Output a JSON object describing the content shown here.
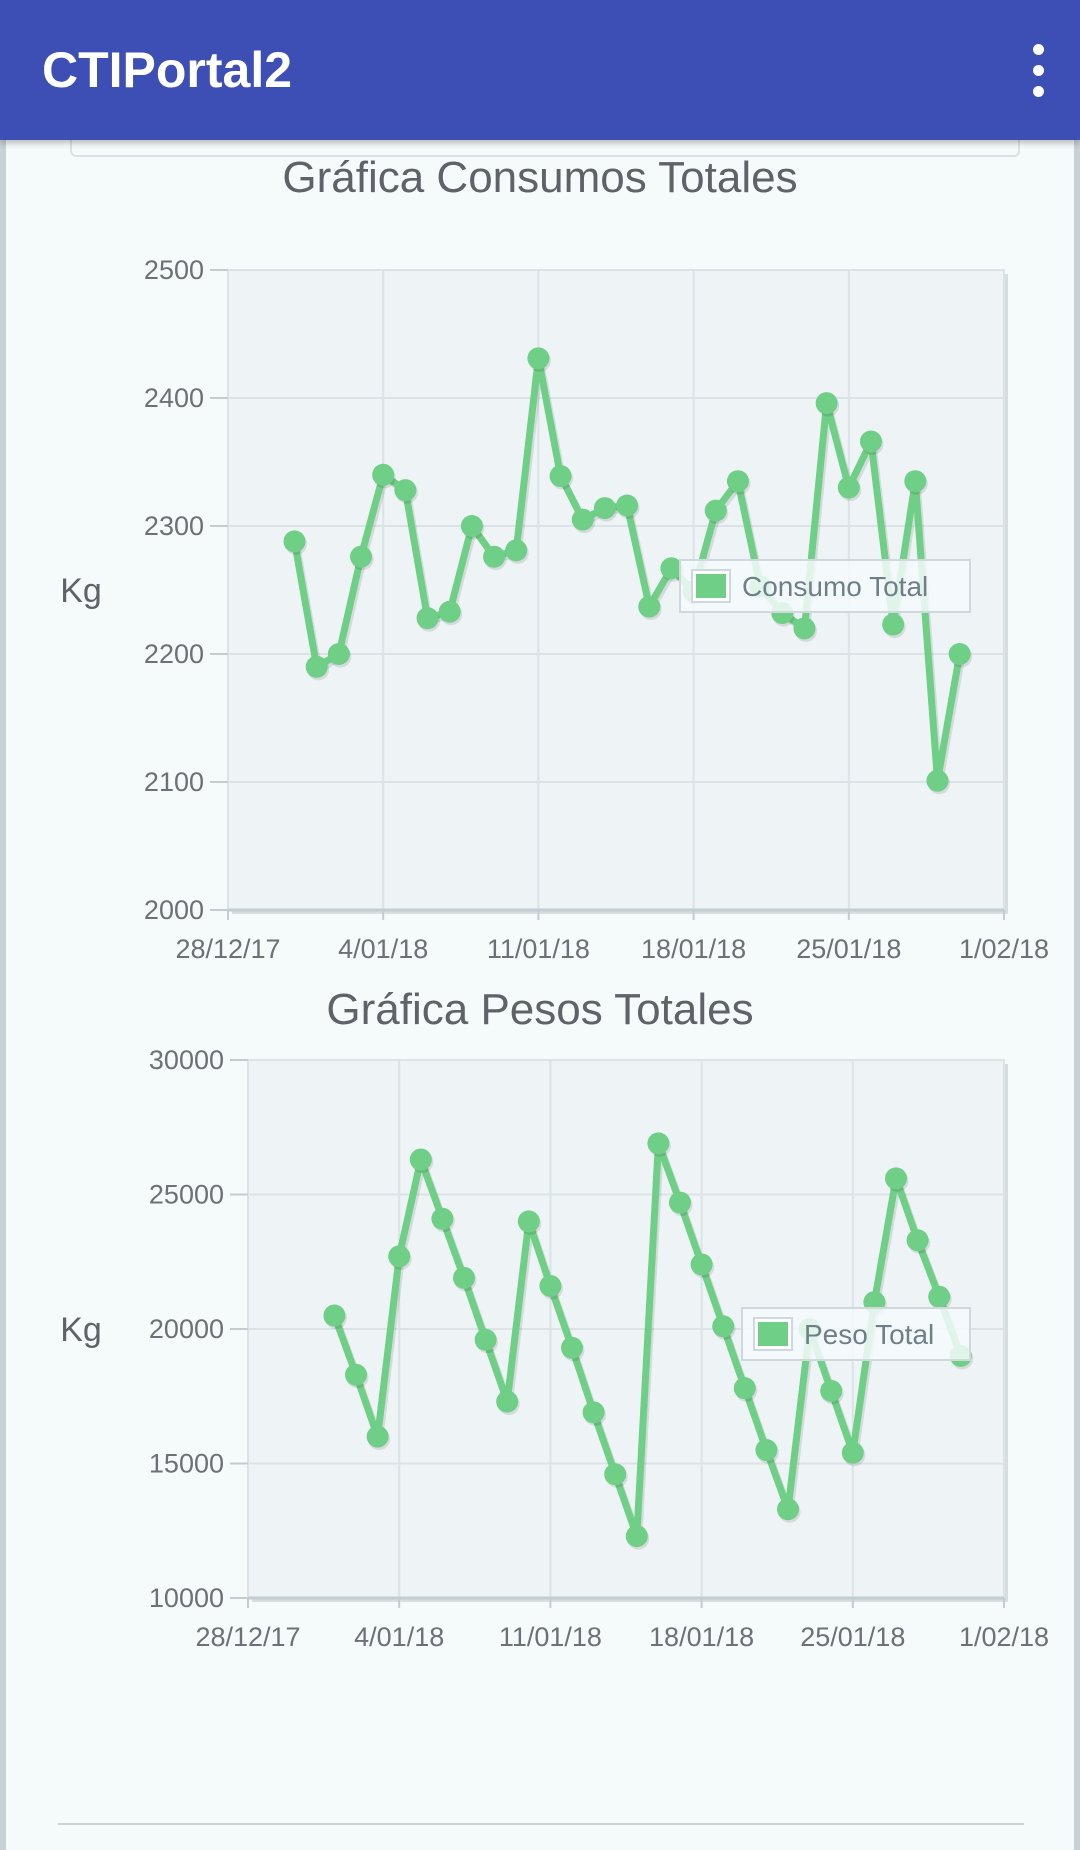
{
  "app_bar": {
    "title": "CTIPortal2",
    "overflow_icon": "more-vert-icon"
  },
  "colors": {
    "app_bar": "#3d4eb5",
    "series": "#6fcf86",
    "plot_background": "#eef4f6"
  },
  "chart_data": [
    {
      "type": "line",
      "title": "Gráfica Consumos Totales",
      "ylabel": "Kg",
      "ylim": [
        2000,
        2500
      ],
      "yticks": [
        2000,
        2100,
        2200,
        2300,
        2400,
        2500
      ],
      "xlim": [
        0,
        35
      ],
      "xticks": [
        0,
        7,
        14,
        21,
        28,
        35
      ],
      "xtick_labels": [
        "28/12/17",
        "4/01/18",
        "11/01/18",
        "18/01/18",
        "25/01/18",
        "1/02/18"
      ],
      "grid": true,
      "legend_placement": "right",
      "series": [
        {
          "name": "Consumo Total",
          "color": "#6fcf86",
          "x": [
            3,
            4,
            5,
            6,
            7,
            8,
            9,
            10,
            11,
            12,
            13,
            14,
            15,
            16,
            17,
            18,
            19,
            20,
            21,
            22,
            23,
            24,
            25,
            26,
            27,
            28,
            29,
            30,
            31,
            32,
            33
          ],
          "values": [
            2288,
            2190,
            2200,
            2276,
            2340,
            2328,
            2228,
            2233,
            2300,
            2276,
            2281,
            2431,
            2339,
            2305,
            2314,
            2316,
            2237,
            2267,
            2249,
            2312,
            2335,
            2253,
            2232,
            2220,
            2396,
            2330,
            2366,
            2223,
            2335,
            2101,
            2200
          ]
        }
      ]
    },
    {
      "type": "line",
      "title": "Gráfica Pesos Totales",
      "ylabel": "Kg",
      "ylim": [
        10000,
        30000
      ],
      "yticks": [
        10000,
        15000,
        20000,
        25000,
        30000
      ],
      "xlim": [
        0,
        35
      ],
      "xticks": [
        0,
        7,
        14,
        21,
        28,
        35
      ],
      "xtick_labels": [
        "28/12/17",
        "4/01/18",
        "11/01/18",
        "18/01/18",
        "25/01/18",
        "1/02/18"
      ],
      "grid": true,
      "legend_placement": "right",
      "series": [
        {
          "name": "Peso Total",
          "color": "#6fcf86",
          "x": [
            4,
            5,
            6,
            7,
            8,
            9,
            10,
            11,
            12,
            13,
            14,
            15,
            16,
            17,
            18,
            19,
            20,
            21,
            22,
            23,
            24,
            25,
            26,
            27,
            28,
            29,
            30,
            31,
            32,
            33
          ],
          "values": [
            20500,
            18300,
            16000,
            22700,
            26300,
            24100,
            21900,
            19600,
            17300,
            24000,
            21600,
            19300,
            16900,
            14600,
            12300,
            26900,
            24700,
            22400,
            20100,
            17800,
            15500,
            13300,
            20000,
            17700,
            15400,
            21000,
            25600,
            23300,
            21200,
            19000
          ]
        }
      ]
    }
  ]
}
